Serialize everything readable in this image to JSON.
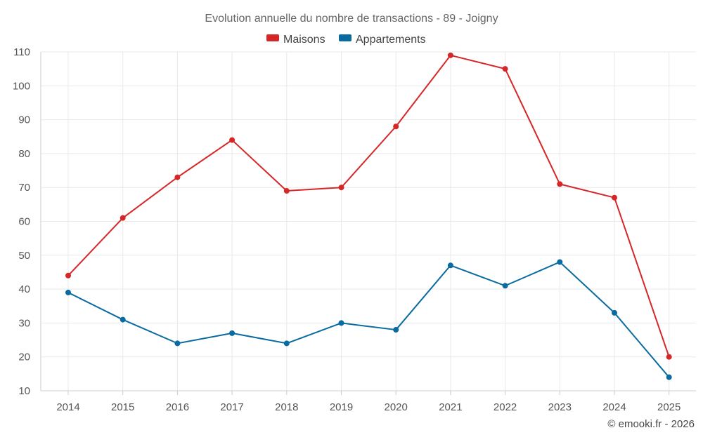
{
  "chart_data": {
    "type": "line",
    "title": "Evolution annuelle du nombre de transactions - 89 - Joigny",
    "xlabel": "",
    "ylabel": "",
    "categories": [
      "2014",
      "2015",
      "2016",
      "2017",
      "2018",
      "2019",
      "2020",
      "2021",
      "2022",
      "2023",
      "2024",
      "2025"
    ],
    "ylim": [
      10,
      110
    ],
    "yticks": [
      10,
      20,
      30,
      40,
      50,
      60,
      70,
      80,
      90,
      100,
      110
    ],
    "grid": true,
    "legend_position": "top-center",
    "series": [
      {
        "name": "Maisons",
        "color": "#d62728",
        "values": [
          44,
          61,
          73,
          84,
          69,
          70,
          88,
          109,
          105,
          71,
          67,
          20
        ]
      },
      {
        "name": "Appartements",
        "color": "#0a6ba0",
        "values": [
          39,
          31,
          24,
          27,
          24,
          30,
          28,
          47,
          41,
          48,
          33,
          14
        ]
      }
    ]
  },
  "credit": "© emooki.fr - 2026"
}
